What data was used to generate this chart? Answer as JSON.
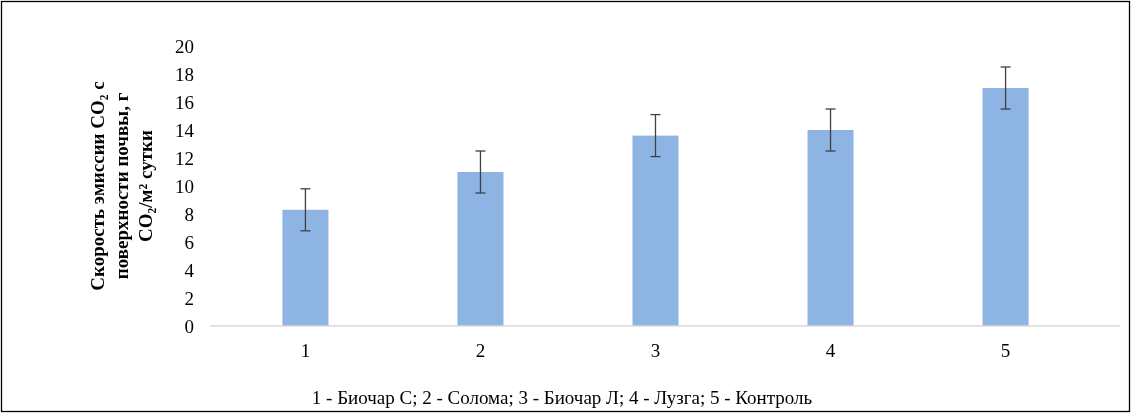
{
  "chart_data": {
    "type": "bar",
    "ylabel": "Скорость эмиссии CO₂ с поверхности почвы, г CO₂/м² сутки",
    "categories": [
      "1",
      "2",
      "3",
      "4",
      "5"
    ],
    "values": [
      8.3,
      11.0,
      13.6,
      14.0,
      17.0
    ],
    "errors": [
      1.5,
      1.5,
      1.5,
      1.5,
      1.5
    ],
    "color": "#8eb4e3",
    "ylim": [
      0,
      20
    ],
    "yticks": [
      0,
      2,
      4,
      6,
      8,
      10,
      12,
      14,
      16,
      18,
      20
    ],
    "grid": false,
    "annotations": [
      "1 - Биочар С; 2 - Солома; 3 - Биочар Л; 4 - Лузга; 5 - Контроль"
    ]
  }
}
